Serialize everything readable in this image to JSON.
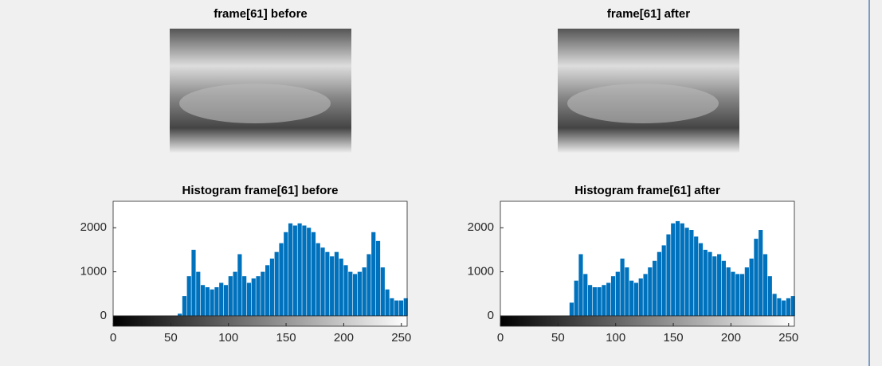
{
  "images": [
    {
      "title": "frame[61] before"
    },
    {
      "title": "frame[61] after"
    }
  ],
  "chart_data": [
    {
      "type": "histogram",
      "title": "Histogram frame[61] before",
      "color": "#0072bd",
      "bins": [
        0,
        4,
        8,
        12,
        16,
        20,
        24,
        28,
        32,
        36,
        40,
        44,
        48,
        52,
        56,
        60,
        64,
        68,
        72,
        76,
        80,
        84,
        88,
        92,
        96,
        100,
        104,
        108,
        112,
        116,
        120,
        124,
        128,
        132,
        136,
        140,
        144,
        148,
        152,
        156,
        160,
        164,
        168,
        172,
        176,
        180,
        184,
        188,
        192,
        196,
        200,
        204,
        208,
        212,
        216,
        220,
        224,
        228,
        232,
        236,
        240,
        244,
        248,
        252,
        256
      ],
      "counts": [
        0,
        0,
        0,
        0,
        0,
        0,
        0,
        0,
        0,
        0,
        0,
        0,
        0,
        0,
        50,
        450,
        900,
        1500,
        1000,
        700,
        650,
        600,
        650,
        750,
        700,
        900,
        1000,
        1400,
        900,
        750,
        850,
        900,
        1000,
        1150,
        1300,
        1450,
        1650,
        1900,
        2100,
        2050,
        2100,
        2050,
        2000,
        1900,
        1650,
        1550,
        1450,
        1350,
        1450,
        1300,
        1150,
        1000,
        950,
        1000,
        1100,
        1400,
        1900,
        1700,
        1100,
        600,
        400,
        350,
        350,
        400
      ],
      "xlim": [
        0,
        255
      ],
      "ylim": [
        0,
        2600
      ],
      "xticks": [
        0,
        50,
        100,
        150,
        200,
        250
      ],
      "yticks": [
        0,
        1000,
        2000
      ]
    },
    {
      "type": "histogram",
      "title": "Histogram frame[61] after",
      "color": "#0072bd",
      "bins": [
        0,
        4,
        8,
        12,
        16,
        20,
        24,
        28,
        32,
        36,
        40,
        44,
        48,
        52,
        56,
        60,
        64,
        68,
        72,
        76,
        80,
        84,
        88,
        92,
        96,
        100,
        104,
        108,
        112,
        116,
        120,
        124,
        128,
        132,
        136,
        140,
        144,
        148,
        152,
        156,
        160,
        164,
        168,
        172,
        176,
        180,
        184,
        188,
        192,
        196,
        200,
        204,
        208,
        212,
        216,
        220,
        224,
        228,
        232,
        236,
        240,
        244,
        248,
        252,
        256
      ],
      "counts": [
        0,
        0,
        0,
        0,
        0,
        0,
        0,
        0,
        0,
        0,
        0,
        0,
        0,
        0,
        0,
        300,
        800,
        1400,
        950,
        700,
        650,
        650,
        700,
        750,
        900,
        1000,
        1300,
        1100,
        800,
        750,
        850,
        950,
        1100,
        1250,
        1450,
        1600,
        1850,
        2100,
        2150,
        2100,
        2000,
        1950,
        1800,
        1650,
        1500,
        1450,
        1350,
        1400,
        1250,
        1100,
        1000,
        950,
        950,
        1100,
        1300,
        1750,
        1950,
        1400,
        900,
        500,
        400,
        350,
        400,
        450
      ],
      "xlim": [
        0,
        255
      ],
      "ylim": [
        0,
        2600
      ],
      "xticks": [
        0,
        50,
        100,
        150,
        200,
        250
      ],
      "yticks": [
        0,
        1000,
        2000
      ]
    }
  ]
}
